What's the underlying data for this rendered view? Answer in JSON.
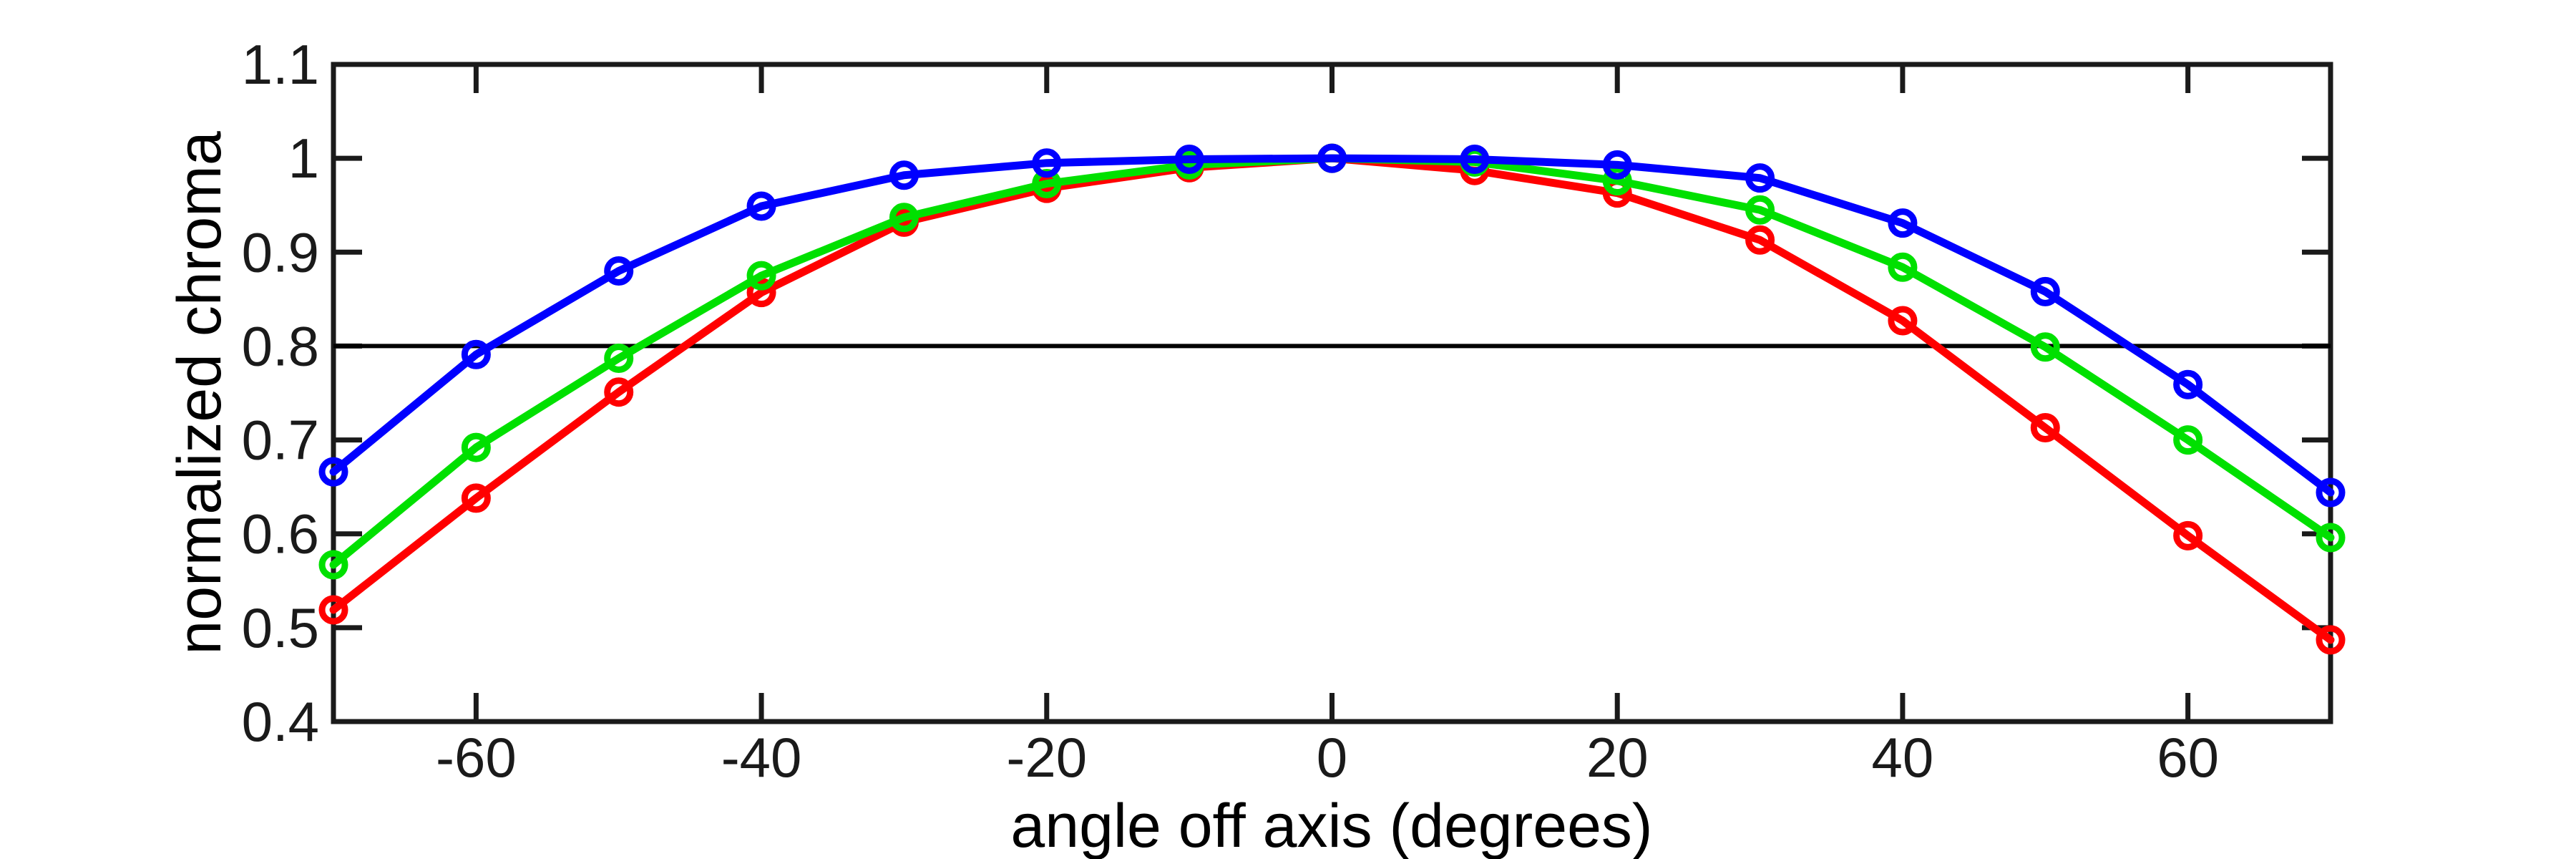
{
  "chart_data": {
    "type": "line",
    "title": "",
    "xlabel": "angle off axis (degrees)",
    "ylabel": "normalized chroma",
    "xlim": [
      -70,
      70
    ],
    "ylim": [
      0.4,
      1.1
    ],
    "grid": false,
    "legend": "none",
    "marker": "o",
    "x_ticks": [
      -60,
      -40,
      -20,
      0,
      20,
      40,
      60
    ],
    "x_tick_labels": [
      "-60",
      "-40",
      "-20",
      "0",
      "20",
      "40",
      "60"
    ],
    "y_ticks": [
      0.4,
      0.5,
      0.6,
      0.7,
      0.8,
      0.9,
      1.0,
      1.1
    ],
    "y_tick_labels": [
      "0.4",
      "0.5",
      "0.6",
      "0.7",
      "0.8",
      "0.9",
      "1",
      "1.1"
    ],
    "x": [
      -70,
      -60,
      -50,
      -40,
      -30,
      -20,
      -10,
      0,
      10,
      20,
      30,
      40,
      50,
      60,
      70
    ],
    "series": [
      {
        "name": "red",
        "color": "#ff0000",
        "values": [
          0.519,
          0.638,
          0.751,
          0.857,
          0.932,
          0.968,
          0.99,
          1.0,
          0.987,
          0.963,
          0.913,
          0.827,
          0.713,
          0.598,
          0.487
        ]
      },
      {
        "name": "green",
        "color": "#00e000",
        "values": [
          0.567,
          0.692,
          0.787,
          0.875,
          0.937,
          0.973,
          0.993,
          1.0,
          0.996,
          0.976,
          0.945,
          0.884,
          0.799,
          0.7,
          0.596
        ]
      },
      {
        "name": "blue",
        "color": "#0000ff",
        "values": [
          0.666,
          0.791,
          0.88,
          0.949,
          0.982,
          0.995,
          0.999,
          1.0,
          0.999,
          0.993,
          0.979,
          0.931,
          0.858,
          0.759,
          0.644
        ]
      }
    ],
    "threshold_line": {
      "y": 0.8,
      "color": "#000000"
    },
    "axis_color": "#1a1a1a",
    "text_color": "#1a1a1a"
  }
}
